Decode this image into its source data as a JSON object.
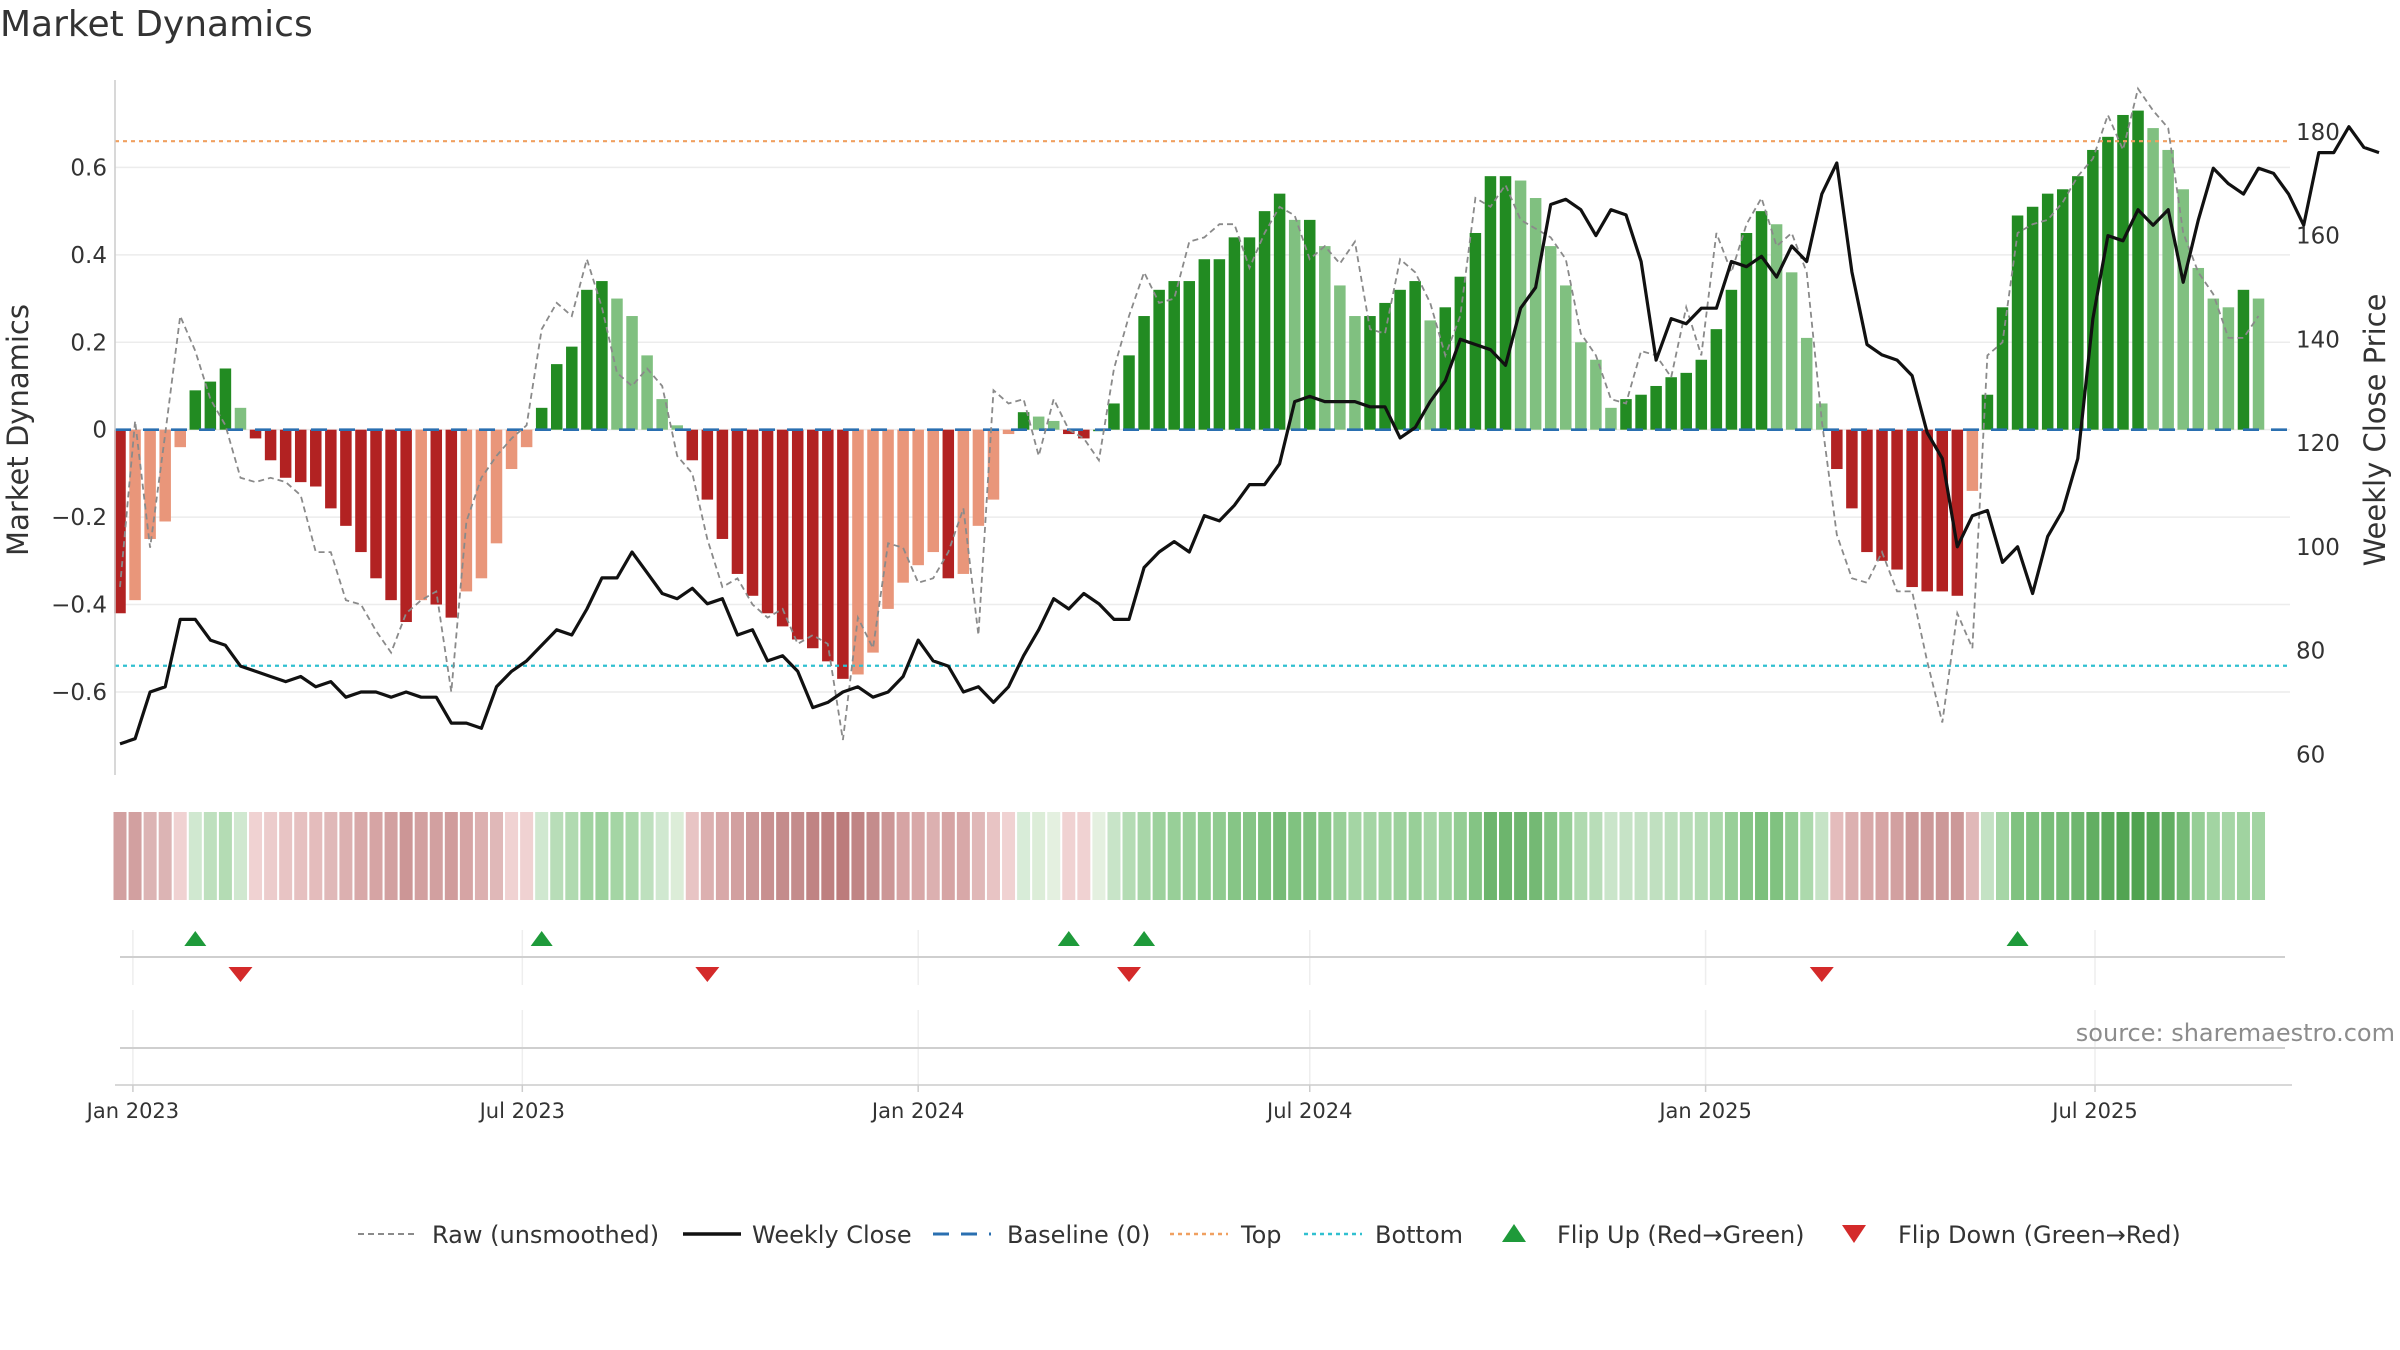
{
  "chart_data": {
    "type": "bar",
    "title": "Market Dynamics",
    "ylabel": "Market Dynamics",
    "y2label": "Weekly Close Price",
    "ylim": [
      -0.79,
      0.8
    ],
    "y2lim": [
      56,
      190
    ],
    "yticks": [
      0.6,
      0.4,
      0.2,
      0,
      -0.2,
      -0.4,
      -0.6
    ],
    "ytick_labels": [
      "0.6",
      "0.4",
      "0.2",
      "0",
      "−0.2",
      "−0.4",
      "−0.6"
    ],
    "y2ticks": [
      180,
      160,
      140,
      120,
      100,
      80,
      60
    ],
    "y2tick_labels": [
      "180",
      "160",
      "140",
      "120",
      "100",
      "80",
      "60"
    ],
    "x_start": "2022-12-26",
    "x_step_days": 7,
    "xtick_dates": [
      "2023-01-01",
      "2023-07-01",
      "2024-01-01",
      "2024-07-01",
      "2025-01-01",
      "2025-07-01"
    ],
    "xtick_labels": [
      "Jan 2023",
      "Jul 2023",
      "Jan 2024",
      "Jul 2024",
      "Jan 2025",
      "Jul 2025"
    ],
    "top_level": 0.66,
    "bottom_level": -0.54,
    "baseline_level": 0,
    "grid": true,
    "legend_position": "bottom-center",
    "series": [
      {
        "name": "Market Dynamics",
        "type": "bar",
        "values": [
          -0.42,
          -0.39,
          -0.25,
          -0.21,
          -0.04,
          0.09,
          0.11,
          0.14,
          0.05,
          -0.02,
          -0.07,
          -0.11,
          -0.12,
          -0.13,
          -0.18,
          -0.22,
          -0.28,
          -0.34,
          -0.39,
          -0.44,
          -0.39,
          -0.4,
          -0.43,
          -0.37,
          -0.34,
          -0.26,
          -0.09,
          -0.04,
          0.05,
          0.15,
          0.19,
          0.32,
          0.34,
          0.3,
          0.26,
          0.17,
          0.07,
          0.01,
          -0.07,
          -0.16,
          -0.25,
          -0.33,
          -0.38,
          -0.42,
          -0.45,
          -0.48,
          -0.5,
          -0.53,
          -0.57,
          -0.56,
          -0.51,
          -0.41,
          -0.35,
          -0.31,
          -0.28,
          -0.34,
          -0.33,
          -0.22,
          -0.16,
          -0.01,
          0.04,
          0.03,
          0.02,
          -0.01,
          -0.02,
          0.0,
          0.06,
          0.17,
          0.26,
          0.32,
          0.34,
          0.34,
          0.39,
          0.39,
          0.44,
          0.44,
          0.5,
          0.54,
          0.48,
          0.48,
          0.42,
          0.33,
          0.26,
          0.26,
          0.29,
          0.32,
          0.34,
          0.25,
          0.28,
          0.35,
          0.45,
          0.58,
          0.58,
          0.57,
          0.53,
          0.42,
          0.33,
          0.2,
          0.16,
          0.05,
          0.07,
          0.08,
          0.1,
          0.12,
          0.13,
          0.16,
          0.23,
          0.32,
          0.45,
          0.5,
          0.47,
          0.36,
          0.21,
          0.06,
          -0.09,
          -0.18,
          -0.28,
          -0.3,
          -0.32,
          -0.36,
          -0.37,
          -0.37,
          -0.38,
          -0.14,
          0.08,
          0.28,
          0.49,
          0.51,
          0.54,
          0.55,
          0.58,
          0.64,
          0.67,
          0.72,
          0.73,
          0.69,
          0.64,
          0.55,
          0.37,
          0.3,
          0.28,
          0.32,
          0.3
        ]
      },
      {
        "name": "Raw (unsmoothed)",
        "type": "line",
        "values": [
          -0.36,
          0.02,
          -0.27,
          -0.01,
          0.26,
          0.18,
          0.07,
          0.01,
          -0.11,
          -0.12,
          -0.11,
          -0.12,
          -0.15,
          -0.28,
          -0.28,
          -0.39,
          -0.4,
          -0.46,
          -0.51,
          -0.42,
          -0.39,
          -0.37,
          -0.6,
          -0.21,
          -0.11,
          -0.06,
          -0.02,
          0.01,
          0.23,
          0.29,
          0.26,
          0.39,
          0.28,
          0.13,
          0.1,
          0.14,
          0.1,
          -0.06,
          -0.1,
          -0.25,
          -0.36,
          -0.34,
          -0.4,
          -0.43,
          -0.41,
          -0.49,
          -0.47,
          -0.49,
          -0.71,
          -0.43,
          -0.5,
          -0.26,
          -0.27,
          -0.35,
          -0.34,
          -0.28,
          -0.18,
          -0.47,
          0.09,
          0.06,
          0.07,
          -0.06,
          0.07,
          0.0,
          -0.02,
          -0.07,
          0.14,
          0.26,
          0.36,
          0.29,
          0.3,
          0.43,
          0.44,
          0.47,
          0.47,
          0.37,
          0.45,
          0.51,
          0.49,
          0.39,
          0.42,
          0.38,
          0.43,
          0.23,
          0.22,
          0.39,
          0.36,
          0.29,
          0.17,
          0.26,
          0.53,
          0.51,
          0.56,
          0.48,
          0.46,
          0.44,
          0.39,
          0.22,
          0.17,
          0.07,
          0.06,
          0.18,
          0.17,
          0.12,
          0.28,
          0.17,
          0.45,
          0.36,
          0.47,
          0.53,
          0.42,
          0.45,
          0.36,
          0.02,
          -0.24,
          -0.34,
          -0.35,
          -0.28,
          -0.37,
          -0.37,
          -0.53,
          -0.67,
          -0.42,
          -0.5,
          0.17,
          0.2,
          0.45,
          0.47,
          0.48,
          0.52,
          0.58,
          0.62,
          0.72,
          0.64,
          0.78,
          0.73,
          0.69,
          0.45,
          0.36,
          0.31,
          0.21,
          0.21,
          0.26
        ]
      },
      {
        "name": "Weekly Close",
        "type": "line",
        "axis": "right",
        "values": [
          62,
          63,
          72,
          73,
          86,
          86,
          82,
          81,
          77,
          76,
          75,
          74,
          75,
          73,
          74,
          71,
          72,
          72,
          71,
          72,
          71,
          71,
          66,
          66,
          65,
          73,
          76,
          78,
          81,
          84,
          83,
          88,
          94,
          94,
          99,
          95,
          91,
          90,
          92,
          89,
          90,
          83,
          84,
          78,
          79,
          76,
          69,
          70,
          72,
          73,
          71,
          72,
          75,
          82,
          78,
          77,
          72,
          73,
          70,
          73,
          79,
          84,
          90,
          88,
          91,
          89,
          86,
          86,
          96,
          99,
          101,
          99,
          106,
          105,
          108,
          112,
          112,
          116,
          128,
          129,
          128,
          128,
          128,
          127,
          127,
          121,
          123,
          128,
          132,
          140,
          139,
          138,
          135,
          146,
          150,
          166,
          167,
          165,
          160,
          165,
          164,
          155,
          136,
          144,
          143,
          146,
          146,
          155,
          154,
          156,
          152,
          158,
          155,
          168,
          174,
          153,
          139,
          137,
          136,
          133,
          122,
          117,
          100,
          106,
          107,
          97,
          100,
          91,
          102,
          107,
          117,
          144,
          160,
          159,
          165,
          162,
          165,
          151,
          163,
          173,
          170,
          168,
          173,
          172,
          168,
          162,
          176,
          176,
          181,
          177,
          176
        ]
      }
    ]
  },
  "strip": {
    "colors": [
      "#d2a0a0",
      "#d2a0a0",
      "#dcb4b4",
      "#dcb4b4",
      "#f0d2d2",
      "#d0e8d0",
      "#bee0be",
      "#b4dcb4",
      "#d0e8d0",
      "#f0d2d2",
      "#eccccc",
      "#e8c4c4",
      "#e6c0c0",
      "#e4bcbc",
      "#e0b8b8",
      "#dcb0b0",
      "#d8a8a8",
      "#d6a4a4",
      "#d2a0a0",
      "#cc9696",
      "#d2a0a0",
      "#d2a0a0",
      "#d09c9c",
      "#d6a4a4",
      "#dcb0b0",
      "#e0b8b8",
      "#f0d2d2",
      "#f0d2d2",
      "#d0e8d0",
      "#b8ddb8",
      "#b0dab0",
      "#a0d3a0",
      "#9cd19c",
      "#a4d5a4",
      "#aad8aa",
      "#bee0be",
      "#d0e8d0",
      "#dcedd8",
      "#e8c4c4",
      "#dcb0b0",
      "#d8a8a8",
      "#d2a0a0",
      "#cc9898",
      "#c89090",
      "#c48c8c",
      "#c48c8c",
      "#c08484",
      "#be8080",
      "#bc7c7c",
      "#c08484",
      "#c48c8c",
      "#cc9696",
      "#d6a4a4",
      "#d8a8a8",
      "#dcb0b0",
      "#d6a4a4",
      "#d8a8a8",
      "#e0b8b8",
      "#e8c4c4",
      "#f0d2d2",
      "#d8ecd8",
      "#dcedd8",
      "#e4f0e0",
      "#f0d2d2",
      "#f0d2d2",
      "#e4f0e0",
      "#c8e4c8",
      "#b4dcb4",
      "#a8d6a8",
      "#9cd19c",
      "#98cf98",
      "#98cf98",
      "#90cb90",
      "#90cb90",
      "#86c586",
      "#86c586",
      "#7ec07e",
      "#76bb76",
      "#80c280",
      "#80c280",
      "#88c688",
      "#98cf98",
      "#a4d5a4",
      "#a4d5a4",
      "#a0d3a0",
      "#9cd19c",
      "#98cf98",
      "#a6d6a6",
      "#9ed29e",
      "#94cd94",
      "#84c484",
      "#6db56d",
      "#6db56d",
      "#6fb66f",
      "#74b974",
      "#86c586",
      "#98cf98",
      "#b0dab0",
      "#b8ddb8",
      "#cae5ca",
      "#c6e3c6",
      "#c4e2c4",
      "#c0e0c0",
      "#bcdfbc",
      "#b8ddb8",
      "#b4dcb4",
      "#aad8aa",
      "#98cf98",
      "#86c586",
      "#7cc07c",
      "#80c280",
      "#94cd94",
      "#acd9ac",
      "#c6e3c6",
      "#e4bcbc",
      "#dcb0b0",
      "#d8a8a8",
      "#d6a4a4",
      "#d2a0a0",
      "#cc9898",
      "#cc9898",
      "#cc9898",
      "#cc9898",
      "#e0b8b8",
      "#c4e2c4",
      "#a6d6a6",
      "#80c280",
      "#7cc07c",
      "#78bd78",
      "#76bb76",
      "#6fb66f",
      "#62ae62",
      "#5aa95a",
      "#52a452",
      "#50a350",
      "#56a756",
      "#62ae62",
      "#74b974",
      "#96ce96",
      "#a2d4a2",
      "#a6d6a6",
      "#a0d3a0",
      "#a2d4a2"
    ]
  },
  "flips_up_dates": [
    "2023-01-30",
    "2023-07-10",
    "2024-03-11",
    "2024-04-15",
    "2025-05-26"
  ],
  "flips_down_dates": [
    "2023-02-20",
    "2023-09-25",
    "2024-04-08",
    "2025-02-24"
  ],
  "source_label": "source: sharemaestro.com",
  "legend": [
    {
      "label": "Raw (unsmoothed)",
      "style": "dashed-line",
      "color": "#8a8a8a"
    },
    {
      "label": "Weekly Close",
      "style": "solid-line",
      "color": "#111111"
    },
    {
      "label": "Baseline (0)",
      "style": "dash-line",
      "color": "#2a6fb0"
    },
    {
      "label": "Top",
      "style": "dotted-line",
      "color": "#f0a060"
    },
    {
      "label": "Bottom",
      "style": "dotted-line",
      "color": "#30c0d0"
    },
    {
      "label": "Flip Up (Red→Green)",
      "style": "triangle-up",
      "color": "#1e9a3a"
    },
    {
      "label": "Flip Down (Green→Red)",
      "style": "triangle-down",
      "color": "#d42a2a"
    }
  ],
  "colors": {
    "bar_green_strong": "#228b22",
    "bar_green_light": "#80c080",
    "bar_red_strong": "#b22222",
    "bar_red_light": "#e9967a",
    "grid": "#ececec",
    "axis_spine": "#cccccc"
  }
}
